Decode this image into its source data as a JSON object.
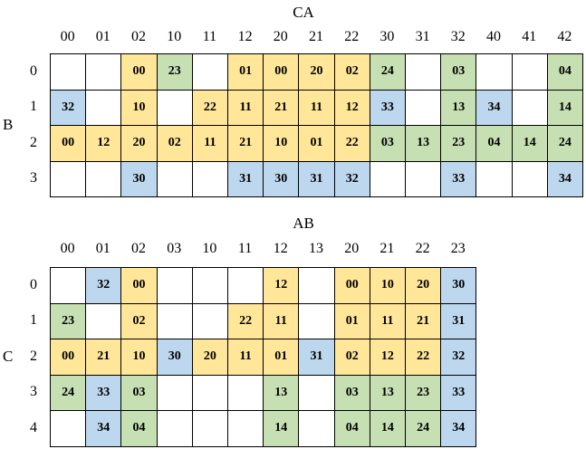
{
  "colors": {
    "yellow": "#FFE699",
    "green": "#C6E0B4",
    "blue": "#BDD7EE",
    "empty": "#FFFFFF"
  },
  "grid1": {
    "title": "CA",
    "row_axis_label": "B",
    "col_headers": [
      "00",
      "01",
      "02",
      "10",
      "11",
      "12",
      "20",
      "21",
      "22",
      "30",
      "31",
      "32",
      "40",
      "41",
      "42"
    ],
    "row_headers": [
      "0",
      "1",
      "2",
      "3"
    ],
    "rows": [
      [
        null,
        null,
        [
          "00",
          "y"
        ],
        [
          "23",
          "g"
        ],
        null,
        [
          "01",
          "y"
        ],
        [
          "00",
          "y"
        ],
        [
          "20",
          "y"
        ],
        [
          "02",
          "y"
        ],
        [
          "24",
          "g"
        ],
        null,
        [
          "03",
          "g"
        ],
        null,
        null,
        [
          "04",
          "g"
        ]
      ],
      [
        [
          "32",
          "b"
        ],
        null,
        [
          "10",
          "y"
        ],
        null,
        [
          "22",
          "y"
        ],
        [
          "11",
          "y"
        ],
        [
          "21",
          "y"
        ],
        [
          "11",
          "y"
        ],
        [
          "12",
          "y"
        ],
        [
          "33",
          "b"
        ],
        null,
        [
          "13",
          "g"
        ],
        [
          "34",
          "b"
        ],
        null,
        [
          "14",
          "g"
        ]
      ],
      [
        [
          "00",
          "y"
        ],
        [
          "12",
          "y"
        ],
        [
          "20",
          "y"
        ],
        [
          "02",
          "y"
        ],
        [
          "11",
          "y"
        ],
        [
          "21",
          "y"
        ],
        [
          "10",
          "y"
        ],
        [
          "01",
          "y"
        ],
        [
          "22",
          "y"
        ],
        [
          "03",
          "g"
        ],
        [
          "13",
          "g"
        ],
        [
          "23",
          "g"
        ],
        [
          "04",
          "g"
        ],
        [
          "14",
          "g"
        ],
        [
          "24",
          "g"
        ]
      ],
      [
        null,
        null,
        [
          "30",
          "b"
        ],
        null,
        null,
        [
          "31",
          "b"
        ],
        [
          "30",
          "b"
        ],
        [
          "31",
          "b"
        ],
        [
          "32",
          "b"
        ],
        null,
        null,
        [
          "33",
          "b"
        ],
        null,
        null,
        [
          "34",
          "b"
        ]
      ]
    ]
  },
  "grid2": {
    "title": "AB",
    "row_axis_label": "C",
    "col_headers": [
      "00",
      "01",
      "02",
      "03",
      "10",
      "11",
      "12",
      "13",
      "20",
      "21",
      "22",
      "23"
    ],
    "row_headers": [
      "0",
      "1",
      "2",
      "3",
      "4"
    ],
    "rows": [
      [
        null,
        [
          "32",
          "b"
        ],
        [
          "00",
          "y"
        ],
        null,
        null,
        null,
        [
          "12",
          "y"
        ],
        null,
        [
          "00",
          "y"
        ],
        [
          "10",
          "y"
        ],
        [
          "20",
          "y"
        ],
        [
          "30",
          "b"
        ]
      ],
      [
        [
          "23",
          "g"
        ],
        null,
        [
          "02",
          "y"
        ],
        null,
        null,
        [
          "22",
          "y"
        ],
        [
          "11",
          "y"
        ],
        null,
        [
          "01",
          "y"
        ],
        [
          "11",
          "y"
        ],
        [
          "21",
          "y"
        ],
        [
          "31",
          "b"
        ]
      ],
      [
        [
          "00",
          "y"
        ],
        [
          "21",
          "y"
        ],
        [
          "10",
          "y"
        ],
        [
          "30",
          "b"
        ],
        [
          "20",
          "y"
        ],
        [
          "11",
          "y"
        ],
        [
          "01",
          "y"
        ],
        [
          "31",
          "b"
        ],
        [
          "02",
          "y"
        ],
        [
          "12",
          "y"
        ],
        [
          "22",
          "y"
        ],
        [
          "32",
          "b"
        ]
      ],
      [
        [
          "24",
          "g"
        ],
        [
          "33",
          "b"
        ],
        [
          "03",
          "g"
        ],
        null,
        null,
        null,
        [
          "13",
          "g"
        ],
        null,
        [
          "03",
          "g"
        ],
        [
          "13",
          "g"
        ],
        [
          "23",
          "g"
        ],
        [
          "33",
          "b"
        ]
      ],
      [
        null,
        [
          "34",
          "b"
        ],
        [
          "04",
          "g"
        ],
        null,
        null,
        null,
        [
          "14",
          "g"
        ],
        null,
        [
          "04",
          "g"
        ],
        [
          "14",
          "g"
        ],
        [
          "24",
          "g"
        ],
        [
          "34",
          "b"
        ]
      ]
    ]
  }
}
